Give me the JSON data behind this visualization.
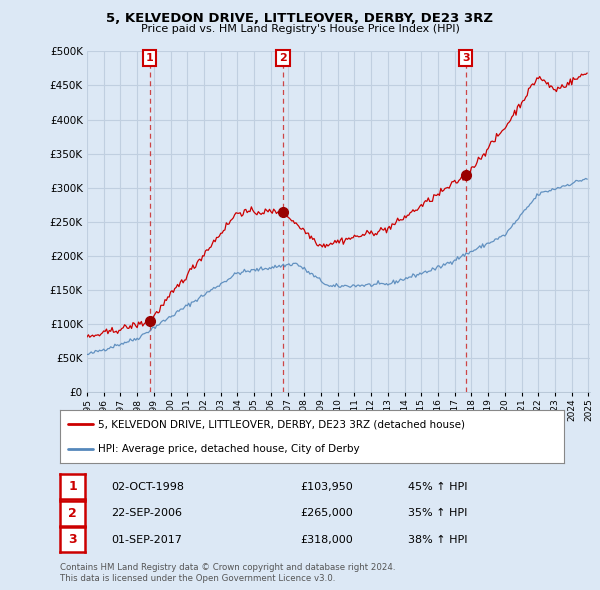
{
  "title": "5, KELVEDON DRIVE, LITTLEOVER, DERBY, DE23 3RZ",
  "subtitle": "Price paid vs. HM Land Registry's House Price Index (HPI)",
  "ylabel_ticks": [
    "£0",
    "£50K",
    "£100K",
    "£150K",
    "£200K",
    "£250K",
    "£300K",
    "£350K",
    "£400K",
    "£450K",
    "£500K"
  ],
  "ytick_values": [
    0,
    50000,
    100000,
    150000,
    200000,
    250000,
    300000,
    350000,
    400000,
    450000,
    500000
  ],
  "ylim": [
    0,
    500000
  ],
  "sale_dates_year": [
    1998.747,
    2006.722,
    2017.664
  ],
  "sale_prices": [
    103950,
    265000,
    318000
  ],
  "sale_labels": [
    "1",
    "2",
    "3"
  ],
  "sale_date_strs": [
    "02-OCT-1998",
    "22-SEP-2006",
    "01-SEP-2017"
  ],
  "sale_price_strs": [
    "£103,950",
    "£265,000",
    "£318,000"
  ],
  "sale_hpi_strs": [
    "45% ↑ HPI",
    "35% ↑ HPI",
    "38% ↑ HPI"
  ],
  "legend_line1": "5, KELVEDON DRIVE, LITTLEOVER, DERBY, DE23 3RZ (detached house)",
  "legend_line2": "HPI: Average price, detached house, City of Derby",
  "footnote1": "Contains HM Land Registry data © Crown copyright and database right 2024.",
  "footnote2": "This data is licensed under the Open Government Licence v3.0.",
  "line_color_red": "#cc0000",
  "line_color_blue": "#5588bb",
  "dashed_color": "#cc3333",
  "bg_color": "#dce8f5",
  "plot_bg_color": "#dce8f5",
  "grid_color": "#c0cfe0",
  "box_color": "#cc0000",
  "legend_bg": "#ffffff",
  "table_bg": "#ffffff"
}
